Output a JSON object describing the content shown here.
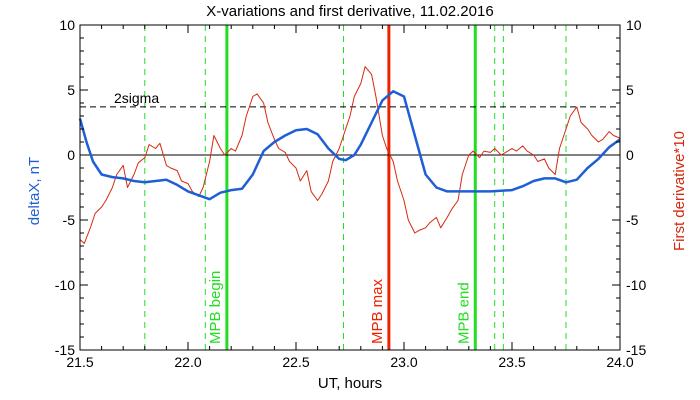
{
  "chart_data": {
    "type": "line",
    "title": "X-variations and first derivative, 11.02.2016",
    "xlabel": "UT, hours",
    "ylabel_left": "deltaX, nT",
    "ylabel_right": "First derivative*10",
    "xlim": [
      21.5,
      24.0
    ],
    "ylim": [
      -15,
      10
    ],
    "xticks": [
      21.5,
      22.0,
      22.5,
      23.0,
      23.5,
      24.0
    ],
    "xtick_labels": [
      "21.5",
      "22.0",
      "22.5",
      "23.0",
      "23.5",
      "24.0"
    ],
    "yticks": [
      -15,
      -10,
      -5,
      0,
      5,
      10
    ],
    "ytick_labels": [
      "-15",
      "-10",
      "-5",
      "0",
      "5",
      "10"
    ],
    "colors": {
      "deltaX": "#1f5fd6",
      "derivative": "#d62a10",
      "mpb": "#22dd22",
      "mpb_max": "#ee2200",
      "axes": "#000000"
    },
    "sigma_level": 3.7,
    "sigma_label": "2sigma",
    "zero_line": 0,
    "dashed_markers": [
      21.8,
      22.08,
      22.72,
      23.42,
      23.46,
      23.75
    ],
    "markers": [
      {
        "label": "MPB begin",
        "x": 22.18,
        "color": "#22dd22"
      },
      {
        "label": "MPB max",
        "x": 22.93,
        "color": "#ee2200"
      },
      {
        "label": "MPB end",
        "x": 23.33,
        "color": "#22dd22"
      }
    ],
    "series": [
      {
        "name": "deltaX",
        "color": "#1f5fd6",
        "x": [
          21.5,
          21.53,
          21.56,
          21.6,
          21.65,
          21.7,
          21.75,
          21.8,
          21.85,
          21.9,
          21.95,
          22.0,
          22.05,
          22.1,
          22.15,
          22.2,
          22.25,
          22.3,
          22.35,
          22.4,
          22.45,
          22.5,
          22.55,
          22.6,
          22.65,
          22.7,
          22.73,
          22.77,
          22.8,
          22.85,
          22.9,
          22.95,
          23.0,
          23.05,
          23.1,
          23.15,
          23.2,
          23.3,
          23.4,
          23.5,
          23.55,
          23.6,
          23.65,
          23.7,
          23.75,
          23.8,
          23.85,
          23.9,
          23.95,
          24.0
        ],
        "y": [
          2.8,
          1.0,
          -0.5,
          -1.5,
          -1.7,
          -1.8,
          -2.0,
          -2.1,
          -2.0,
          -1.9,
          -2.3,
          -2.8,
          -3.1,
          -3.4,
          -2.9,
          -2.7,
          -2.6,
          -1.5,
          0.3,
          1.0,
          1.5,
          1.9,
          2.0,
          1.6,
          0.5,
          -0.3,
          -0.4,
          0.0,
          0.8,
          2.5,
          4.2,
          4.9,
          4.5,
          1.5,
          -1.5,
          -2.5,
          -2.8,
          -2.8,
          -2.8,
          -2.7,
          -2.4,
          -2.0,
          -1.8,
          -1.8,
          -2.1,
          -1.9,
          -1.0,
          -0.3,
          0.6,
          1.2
        ]
      },
      {
        "name": "First derivative*10",
        "color": "#d62a10",
        "x": [
          21.5,
          21.52,
          21.55,
          21.57,
          21.6,
          21.62,
          21.65,
          21.67,
          21.7,
          21.72,
          21.75,
          21.77,
          21.8,
          21.82,
          21.85,
          21.87,
          21.9,
          21.92,
          21.95,
          21.97,
          22.0,
          22.02,
          22.05,
          22.07,
          22.1,
          22.12,
          22.15,
          22.17,
          22.2,
          22.22,
          22.25,
          22.27,
          22.3,
          22.32,
          22.35,
          22.37,
          22.4,
          22.42,
          22.45,
          22.47,
          22.5,
          22.52,
          22.55,
          22.57,
          22.6,
          22.62,
          22.65,
          22.67,
          22.7,
          22.72,
          22.75,
          22.77,
          22.8,
          22.82,
          22.85,
          22.87,
          22.9,
          22.92,
          22.95,
          22.97,
          23.0,
          23.02,
          23.05,
          23.07,
          23.1,
          23.12,
          23.15,
          23.17,
          23.2,
          23.22,
          23.25,
          23.27,
          23.3,
          23.32,
          23.35,
          23.37,
          23.4,
          23.42,
          23.45,
          23.47,
          23.5,
          23.52,
          23.55,
          23.57,
          23.6,
          23.62,
          23.65,
          23.67,
          23.7,
          23.72,
          23.75,
          23.77,
          23.8,
          23.82,
          23.85,
          23.87,
          23.9,
          23.92,
          23.95,
          23.97,
          24.0
        ],
        "y": [
          -6.5,
          -6.8,
          -5.5,
          -4.5,
          -4.0,
          -3.5,
          -2.5,
          -1.5,
          -0.8,
          -2.5,
          -1.5,
          -0.6,
          -0.2,
          0.8,
          0.5,
          0.9,
          -0.8,
          -1.0,
          -1.2,
          -2.0,
          -2.2,
          -2.8,
          -3.2,
          -2.5,
          -0.5,
          1.5,
          0.5,
          0.0,
          0.5,
          0.3,
          1.5,
          3.0,
          4.5,
          4.7,
          4.0,
          2.5,
          1.2,
          0.5,
          0.2,
          -0.5,
          -1.0,
          -2.0,
          -1.2,
          -2.8,
          -3.5,
          -3.0,
          -2.0,
          -0.5,
          0.5,
          1.5,
          3.0,
          4.5,
          5.5,
          6.8,
          6.2,
          4.5,
          1.5,
          0.5,
          -0.5,
          -2.0,
          -3.5,
          -5.0,
          -6.0,
          -5.8,
          -5.6,
          -5.2,
          -4.8,
          -5.6,
          -4.8,
          -4.2,
          -3.5,
          -1.5,
          0.0,
          0.3,
          -0.2,
          0.3,
          0.2,
          0.5,
          0.0,
          0.2,
          0.5,
          0.3,
          0.7,
          0.3,
          0.0,
          -0.5,
          -0.3,
          -1.0,
          -1.5,
          0.5,
          2.0,
          3.0,
          3.7,
          2.5,
          2.0,
          1.5,
          1.0,
          1.2,
          1.8,
          1.5,
          1.3
        ]
      }
    ]
  }
}
